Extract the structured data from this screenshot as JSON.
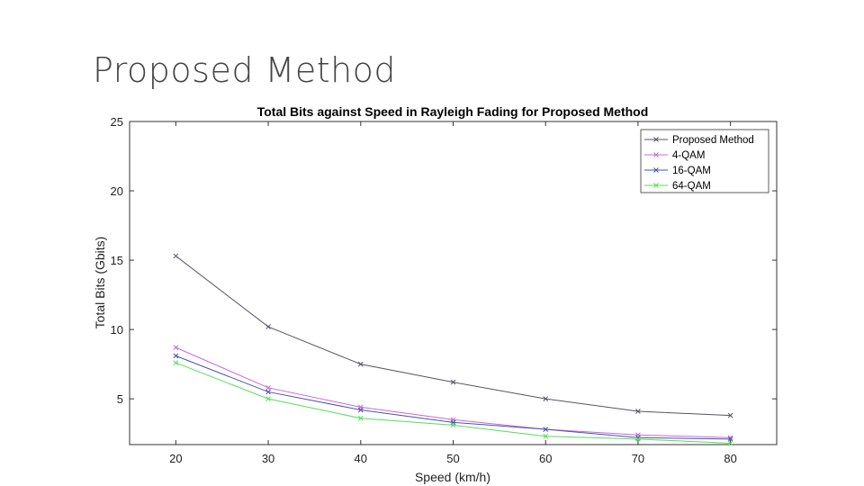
{
  "slide": {
    "title": "Proposed Method"
  },
  "chart_data": {
    "type": "line",
    "title": "Total Bits against Speed in Rayleigh Fading for Proposed Method",
    "xlabel": "Speed (km/h)",
    "ylabel": "Total Bits (Gbits)",
    "x": [
      20,
      30,
      40,
      50,
      60,
      70,
      80
    ],
    "xlim": [
      15,
      85
    ],
    "ylim": [
      1.7,
      25
    ],
    "xticks": [
      20,
      30,
      40,
      50,
      60,
      70,
      80
    ],
    "yticks": [
      5,
      10,
      15,
      20,
      25
    ],
    "grid": false,
    "legend_position": "top-right",
    "marker": "x",
    "series": [
      {
        "name": "Proposed Method",
        "color": "#555566",
        "values": [
          15.3,
          10.2,
          7.5,
          6.2,
          5.0,
          4.1,
          3.8
        ]
      },
      {
        "name": "4-QAM",
        "color": "#cc66dd",
        "values": [
          8.7,
          5.8,
          4.4,
          3.5,
          2.8,
          2.4,
          2.2
        ]
      },
      {
        "name": "16-QAM",
        "color": "#4455aa",
        "values": [
          8.1,
          5.5,
          4.2,
          3.3,
          2.8,
          2.2,
          2.1
        ]
      },
      {
        "name": "64-QAM",
        "color": "#55dd55",
        "values": [
          7.6,
          5.0,
          3.6,
          3.1,
          2.3,
          2.1,
          1.8
        ]
      }
    ]
  }
}
